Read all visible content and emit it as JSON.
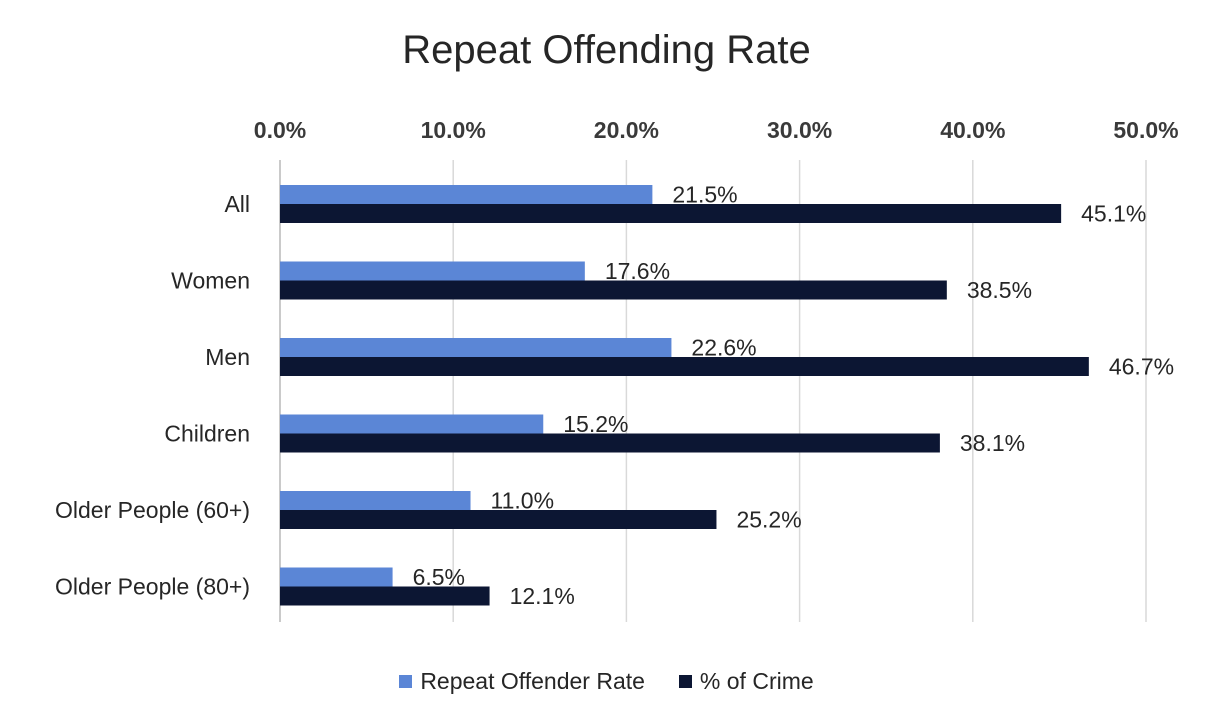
{
  "chart_data": {
    "type": "bar",
    "orientation": "horizontal",
    "title": "Repeat Offending Rate",
    "categories": [
      "All",
      "Women",
      "Men",
      "Children",
      "Older People (60+)",
      "Older People (80+)"
    ],
    "series": [
      {
        "name": "Repeat Offender Rate",
        "color": "#5b86d6",
        "values": [
          21.5,
          17.6,
          22.6,
          15.2,
          11.0,
          6.5
        ],
        "labels": [
          "21.5%",
          "17.6%",
          "22.6%",
          "15.2%",
          "11.0%",
          "6.5%"
        ]
      },
      {
        "name": "% of Crime",
        "color": "#0c1633",
        "values": [
          45.1,
          38.5,
          46.7,
          38.1,
          25.2,
          12.1
        ],
        "labels": [
          "45.1%",
          "38.5%",
          "46.7%",
          "38.1%",
          "25.2%",
          "12.1%"
        ]
      }
    ],
    "xlim": [
      0,
      50
    ],
    "xticks": [
      0,
      10,
      20,
      30,
      40,
      50
    ],
    "xtick_labels": [
      "0.0%",
      "10.0%",
      "20.0%",
      "30.0%",
      "40.0%",
      "50.0%"
    ],
    "x_axis_position": "top",
    "grid": true,
    "legend_position": "bottom"
  }
}
